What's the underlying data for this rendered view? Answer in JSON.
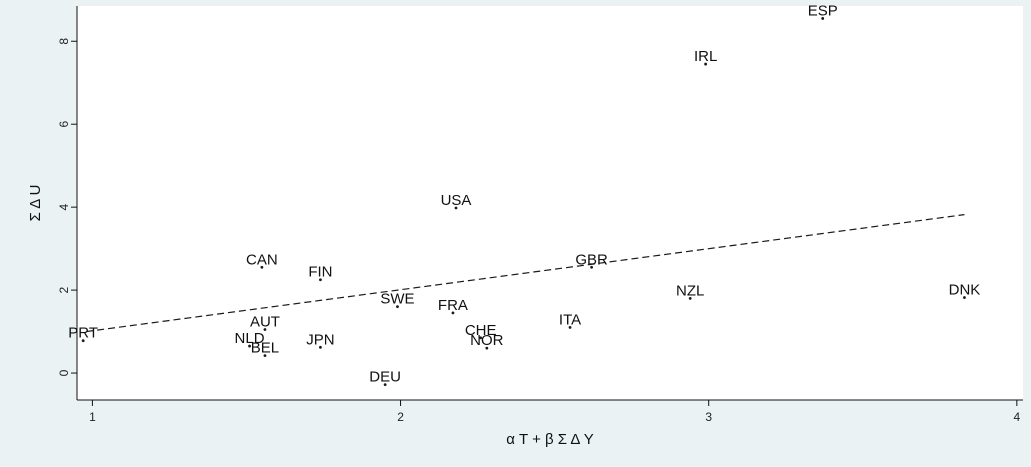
{
  "chart_data": {
    "type": "scatter",
    "xlabel": "α T + β Σ Δ Y",
    "ylabel": "Σ Δ U",
    "xlim": [
      0.95,
      4.02
    ],
    "ylim": [
      -0.65,
      8.85
    ],
    "xticks": [
      1,
      2,
      3,
      4
    ],
    "yticks": [
      0,
      2,
      4,
      6,
      8
    ],
    "grid": false,
    "points": [
      {
        "label": "ESP",
        "x": 3.37,
        "y": 8.55
      },
      {
        "label": "IRL",
        "x": 2.99,
        "y": 7.45
      },
      {
        "label": "USA",
        "x": 2.18,
        "y": 3.98
      },
      {
        "label": "GBR",
        "x": 2.62,
        "y": 2.55
      },
      {
        "label": "CAN",
        "x": 1.55,
        "y": 2.55
      },
      {
        "label": "FIN",
        "x": 1.74,
        "y": 2.25
      },
      {
        "label": "SWE",
        "x": 1.99,
        "y": 1.6
      },
      {
        "label": "FRA",
        "x": 2.17,
        "y": 1.45
      },
      {
        "label": "NZL",
        "x": 2.94,
        "y": 1.8
      },
      {
        "label": "DNK",
        "x": 3.83,
        "y": 1.82
      },
      {
        "label": "ITA",
        "x": 2.55,
        "y": 1.1
      },
      {
        "label": "AUT",
        "x": 1.56,
        "y": 1.05
      },
      {
        "label": "PRT",
        "x": 0.97,
        "y": 0.78
      },
      {
        "label": "NLD",
        "x": 1.51,
        "y": 0.65
      },
      {
        "label": "JPN",
        "x": 1.74,
        "y": 0.62
      },
      {
        "label": "BEL",
        "x": 1.56,
        "y": 0.42
      },
      {
        "label": "CHE",
        "x": 2.26,
        "y": 0.85
      },
      {
        "label": "NOR",
        "x": 2.28,
        "y": 0.6
      },
      {
        "label": "DEU",
        "x": 1.95,
        "y": -0.28
      }
    ],
    "fit_line": {
      "style": "dashed",
      "x": [
        0.98,
        3.83
      ],
      "y": [
        1.0,
        3.82
      ]
    }
  },
  "colors": {
    "background": "#eaf2f3",
    "plot_area": "#ffffff",
    "marker": "#1a1a1a",
    "line": "#1a1a1a"
  }
}
